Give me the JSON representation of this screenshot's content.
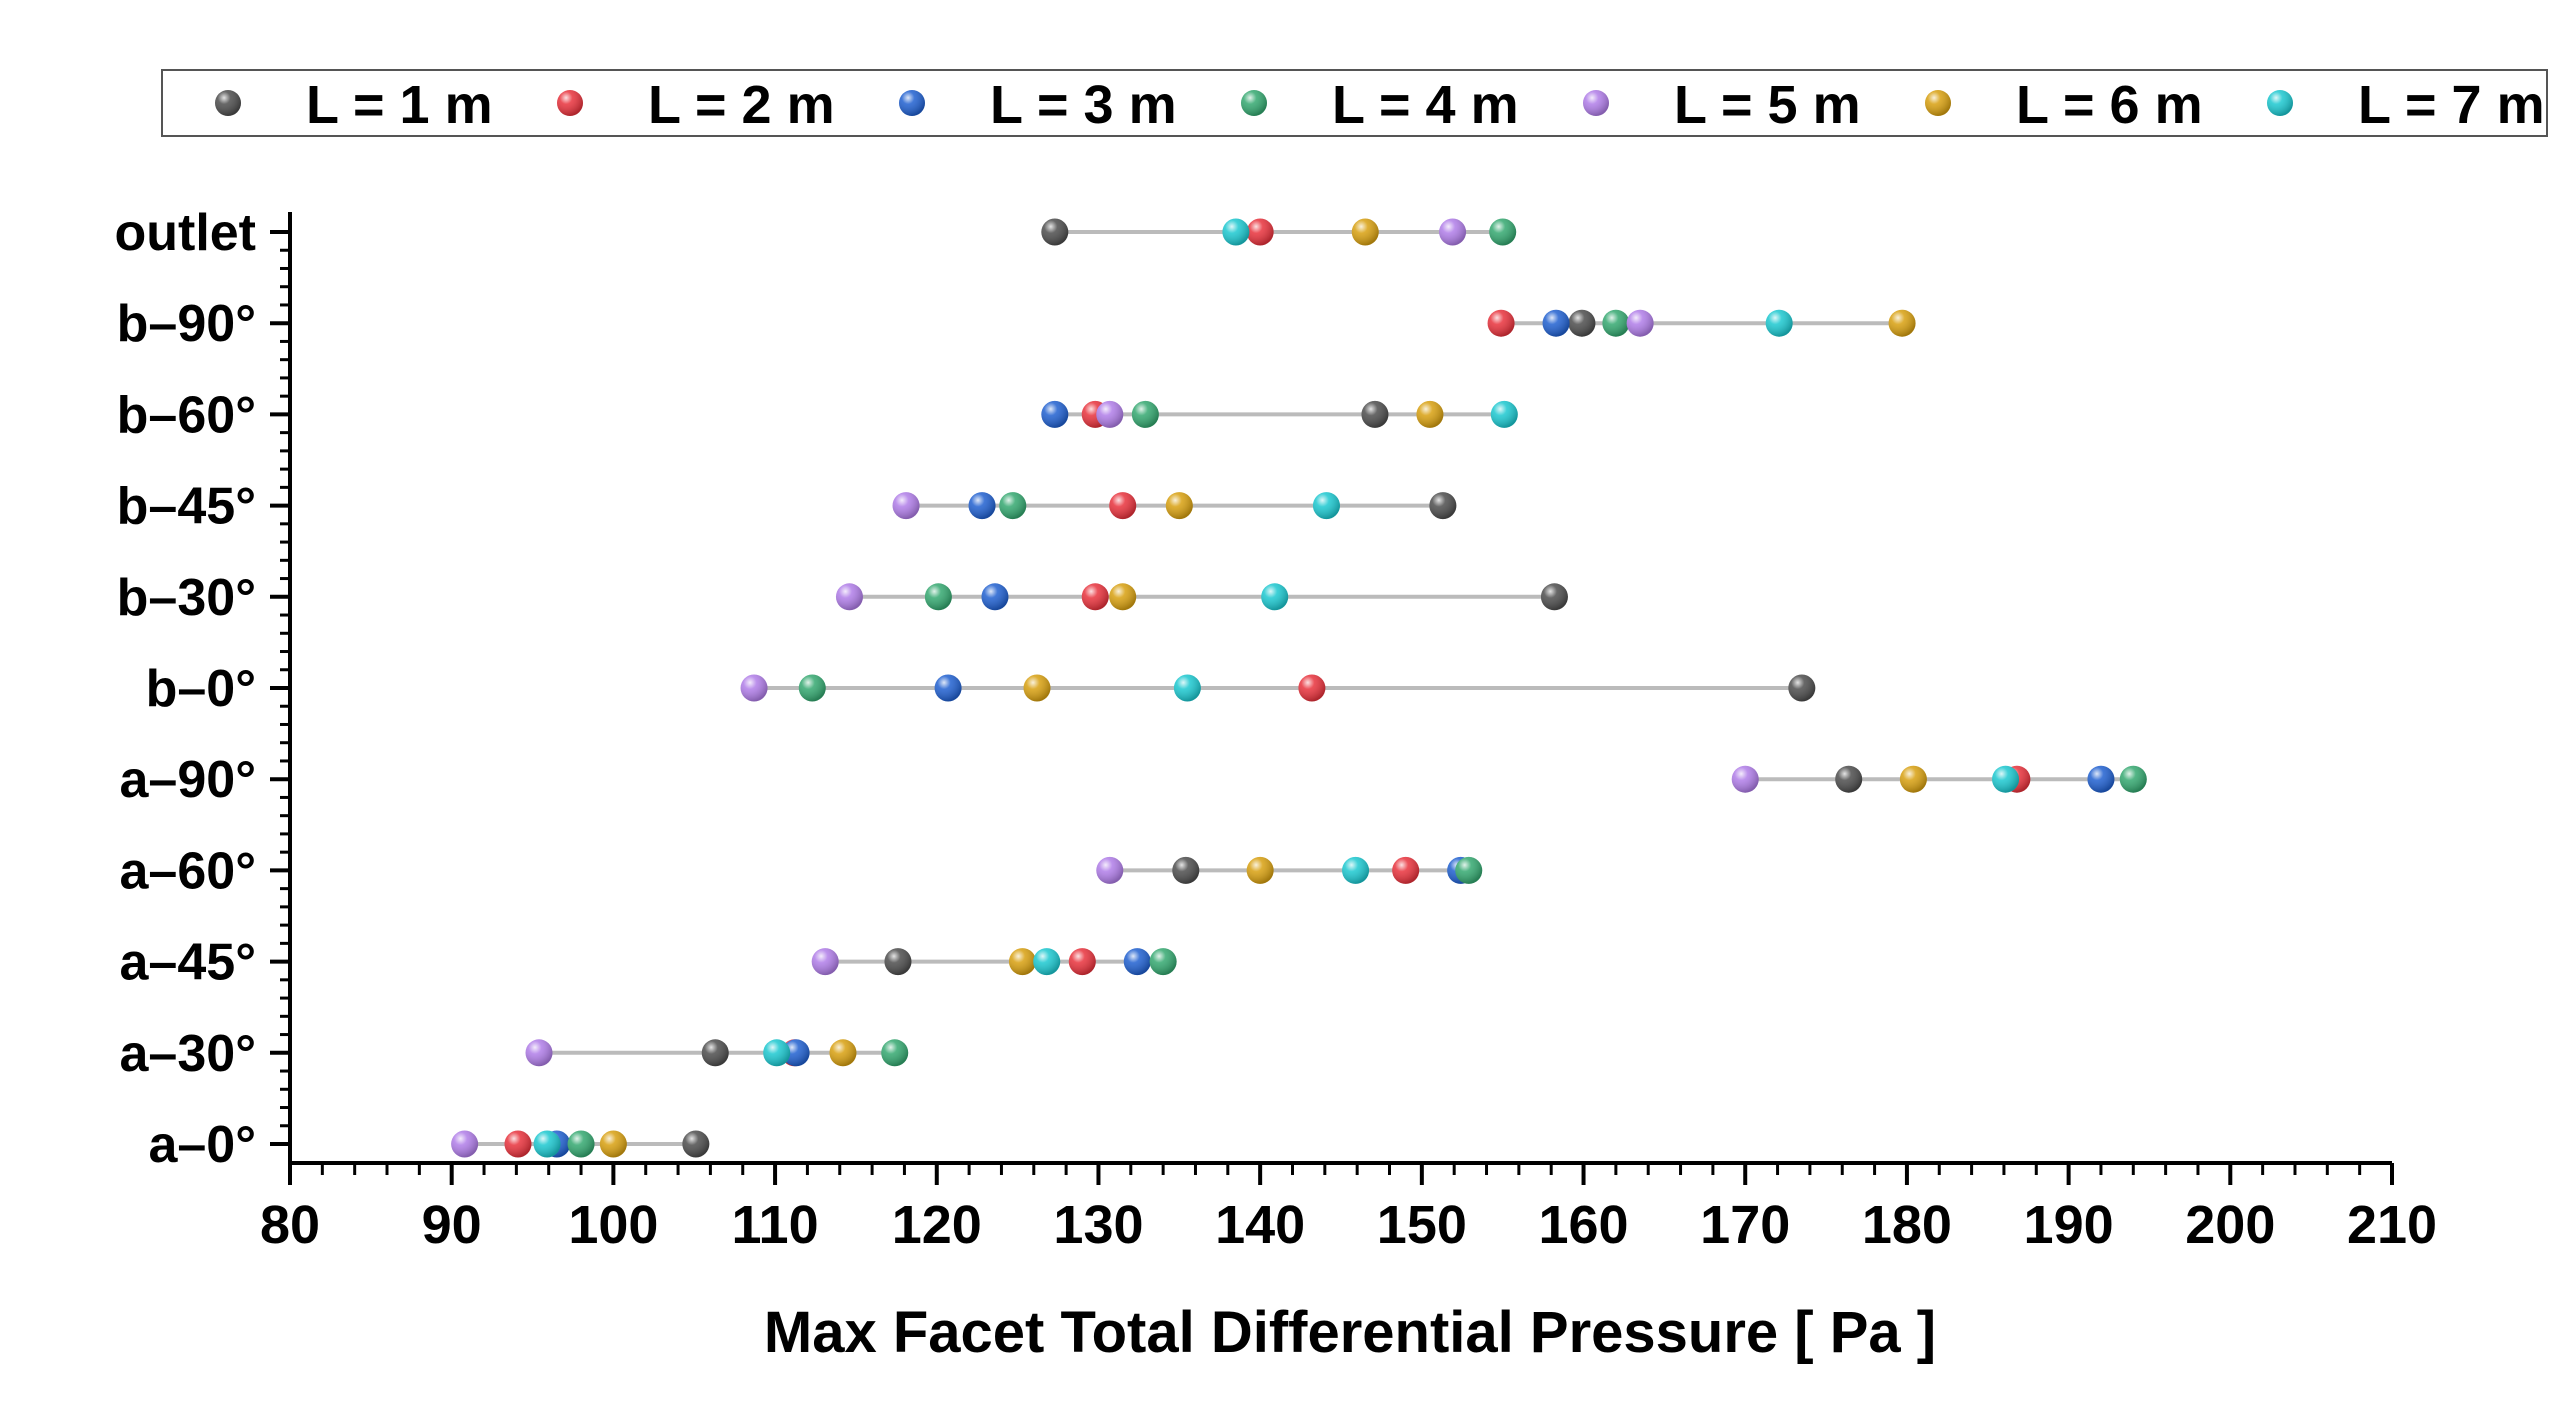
{
  "chart_data": {
    "type": "scatter",
    "xlabel": "Max Facet Total Differential Pressure [ Pa ]",
    "ylabel": "",
    "xlim": [
      80,
      210
    ],
    "x_ticks": [
      80,
      90,
      100,
      110,
      120,
      130,
      140,
      150,
      160,
      170,
      180,
      190,
      200,
      210
    ],
    "categories": [
      "outlet",
      "b–90°",
      "b–60°",
      "b–45°",
      "b–30°",
      "b–0°",
      "a–90°",
      "a–60°",
      "a–45°",
      "a–30°",
      "a–0°"
    ],
    "legend_position": "top",
    "grid": false,
    "series": [
      {
        "name": "L = 1 m",
        "color": "#4d4d4d",
        "values": [
          127.3,
          159.9,
          147.1,
          151.3,
          158.2,
          173.5,
          176.4,
          135.4,
          117.6,
          106.3,
          105.1
        ]
      },
      {
        "name": "L = 2 m",
        "color": "#e8323c",
        "values": [
          140.0,
          154.9,
          129.8,
          131.5,
          129.8,
          143.2,
          186.8,
          149.0,
          129.0,
          111.2,
          94.1
        ]
      },
      {
        "name": "L = 3 m",
        "color": "#2060d0",
        "values": [
          null,
          158.3,
          127.3,
          122.8,
          123.6,
          120.7,
          192.0,
          152.4,
          132.4,
          111.3,
          96.5
        ]
      },
      {
        "name": "L = 4 m",
        "color": "#34a870",
        "values": [
          155.0,
          162.0,
          132.9,
          124.7,
          120.1,
          112.3,
          194.0,
          152.9,
          134.0,
          117.4,
          98.0
        ]
      },
      {
        "name": "L = 5 m",
        "color": "#b07de8",
        "values": [
          151.9,
          163.5,
          130.7,
          118.1,
          114.6,
          108.7,
          170.0,
          130.7,
          113.1,
          95.4,
          90.8
        ]
      },
      {
        "name": "L = 6 m",
        "color": "#d8a010",
        "values": [
          146.5,
          179.7,
          150.5,
          135.0,
          131.5,
          126.2,
          180.4,
          140.0,
          125.3,
          114.2,
          100.0
        ]
      },
      {
        "name": "L = 7 m",
        "color": "#1cc8d0",
        "values": [
          138.5,
          172.1,
          155.1,
          144.1,
          140.9,
          135.5,
          186.1,
          145.9,
          126.8,
          110.1,
          95.9
        ]
      }
    ]
  }
}
